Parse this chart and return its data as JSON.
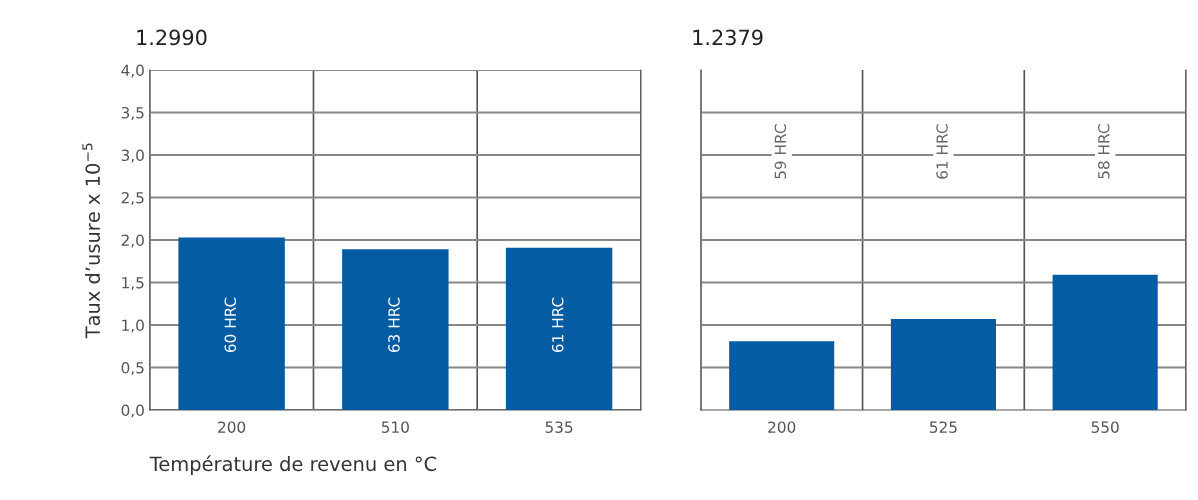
{
  "chart_data": [
    {
      "type": "bar",
      "title": "1.2990",
      "ylabel": "Taux d’usure x 10$^{−5}$",
      "xlabel": "Température de revenu en °C",
      "categories": [
        "200",
        "510",
        "535"
      ],
      "values": [
        2.03,
        1.89,
        1.91
      ],
      "color": "#065ca3",
      "ylim": [
        0,
        4
      ],
      "yticks": [
        {
          "value": 0,
          "label": "0,0"
        },
        {
          "value": 0.5,
          "label": "0,5"
        },
        {
          "value": 1,
          "label": "1,0"
        },
        {
          "value": 1.5,
          "label": "1,5"
        },
        {
          "value": 2,
          "label": "2,0"
        },
        {
          "value": 2.5,
          "label": "2,5"
        },
        {
          "value": 3,
          "label": "3,0"
        },
        {
          "value": 3.5,
          "label": "3,5"
        },
        {
          "value": 4,
          "label": "4,0"
        }
      ],
      "grid": true,
      "annotations": [
        "60 HRC",
        "63 HRC",
        "61 HRC"
      ]
    },
    {
      "type": "bar",
      "title": "1.2379",
      "categories": [
        "200",
        "525",
        "550"
      ],
      "values": [
        0.81,
        1.07,
        1.59
      ],
      "color": "#065ca3",
      "ylim": [
        0,
        4
      ],
      "tick_labels": "x",
      "grid": true,
      "annotations": [
        "59 HRC",
        "61 HRC",
        "58 HRC"
      ]
    }
  ]
}
